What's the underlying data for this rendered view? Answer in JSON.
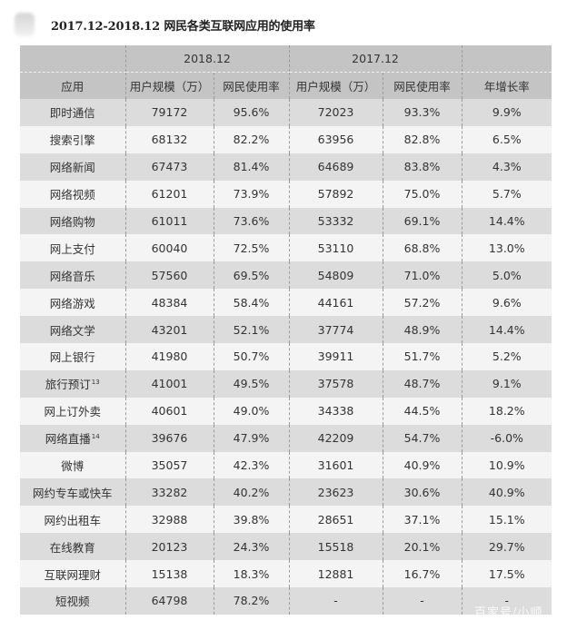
{
  "title": "2017.12-2018.12 网民各类互联网应用的使用率",
  "table": {
    "group_headers": [
      "",
      "2018.12",
      "2017.12",
      ""
    ],
    "headers": [
      "应用",
      "用户规模（万）",
      "网民使用率",
      "用户规模（万）",
      "网民使用率",
      "年增长率"
    ],
    "rows": [
      {
        "app": "即时通信",
        "sup": "",
        "users_2018": "79172",
        "rate_2018": "95.6%",
        "users_2017": "72023",
        "rate_2017": "93.3%",
        "growth": "9.9%"
      },
      {
        "app": "搜索引擎",
        "sup": "",
        "users_2018": "68132",
        "rate_2018": "82.2%",
        "users_2017": "63956",
        "rate_2017": "82.8%",
        "growth": "6.5%"
      },
      {
        "app": "网络新闻",
        "sup": "",
        "users_2018": "67473",
        "rate_2018": "81.4%",
        "users_2017": "64689",
        "rate_2017": "83.8%",
        "growth": "4.3%"
      },
      {
        "app": "网络视频",
        "sup": "",
        "users_2018": "61201",
        "rate_2018": "73.9%",
        "users_2017": "57892",
        "rate_2017": "75.0%",
        "growth": "5.7%"
      },
      {
        "app": "网络购物",
        "sup": "",
        "users_2018": "61011",
        "rate_2018": "73.6%",
        "users_2017": "53332",
        "rate_2017": "69.1%",
        "growth": "14.4%"
      },
      {
        "app": "网上支付",
        "sup": "",
        "users_2018": "60040",
        "rate_2018": "72.5%",
        "users_2017": "53110",
        "rate_2017": "68.8%",
        "growth": "13.0%"
      },
      {
        "app": "网络音乐",
        "sup": "",
        "users_2018": "57560",
        "rate_2018": "69.5%",
        "users_2017": "54809",
        "rate_2017": "71.0%",
        "growth": "5.0%"
      },
      {
        "app": "网络游戏",
        "sup": "",
        "users_2018": "48384",
        "rate_2018": "58.4%",
        "users_2017": "44161",
        "rate_2017": "57.2%",
        "growth": "9.6%"
      },
      {
        "app": "网络文学",
        "sup": "",
        "users_2018": "43201",
        "rate_2018": "52.1%",
        "users_2017": "37774",
        "rate_2017": "48.9%",
        "growth": "14.4%"
      },
      {
        "app": "网上银行",
        "sup": "",
        "users_2018": "41980",
        "rate_2018": "50.7%",
        "users_2017": "39911",
        "rate_2017": "51.7%",
        "growth": "5.2%"
      },
      {
        "app": "旅行预订",
        "sup": "13",
        "users_2018": "41001",
        "rate_2018": "49.5%",
        "users_2017": "37578",
        "rate_2017": "48.7%",
        "growth": "9.1%"
      },
      {
        "app": "网上订外卖",
        "sup": "",
        "users_2018": "40601",
        "rate_2018": "49.0%",
        "users_2017": "34338",
        "rate_2017": "44.5%",
        "growth": "18.2%"
      },
      {
        "app": "网络直播",
        "sup": "14",
        "users_2018": "39676",
        "rate_2018": "47.9%",
        "users_2017": "42209",
        "rate_2017": "54.7%",
        "growth": "-6.0%"
      },
      {
        "app": "微博",
        "sup": "",
        "users_2018": "35057",
        "rate_2018": "42.3%",
        "users_2017": "31601",
        "rate_2017": "40.9%",
        "growth": "10.9%"
      },
      {
        "app": "网约专车或快车",
        "sup": "",
        "users_2018": "33282",
        "rate_2018": "40.2%",
        "users_2017": "23623",
        "rate_2017": "30.6%",
        "growth": "40.9%"
      },
      {
        "app": "网约出租车",
        "sup": "",
        "users_2018": "32988",
        "rate_2018": "39.8%",
        "users_2017": "28651",
        "rate_2017": "37.1%",
        "growth": "15.1%"
      },
      {
        "app": "在线教育",
        "sup": "",
        "users_2018": "20123",
        "rate_2018": "24.3%",
        "users_2017": "15518",
        "rate_2017": "20.1%",
        "growth": "29.7%"
      },
      {
        "app": "互联网理财",
        "sup": "",
        "users_2018": "15138",
        "rate_2018": "18.3%",
        "users_2017": "12881",
        "rate_2017": "16.7%",
        "growth": "17.5%"
      },
      {
        "app": "短视频",
        "sup": "",
        "users_2018": "64798",
        "rate_2018": "78.2%",
        "users_2017": "-",
        "rate_2017": "-",
        "growth": "-"
      }
    ]
  },
  "watermark": "百家号/小顺",
  "colors": {
    "header_bg": "#c4c4c4",
    "row_odd_bg": "#dcdcdc",
    "row_even_bg": "#f4f4f4",
    "text": "#333333"
  }
}
